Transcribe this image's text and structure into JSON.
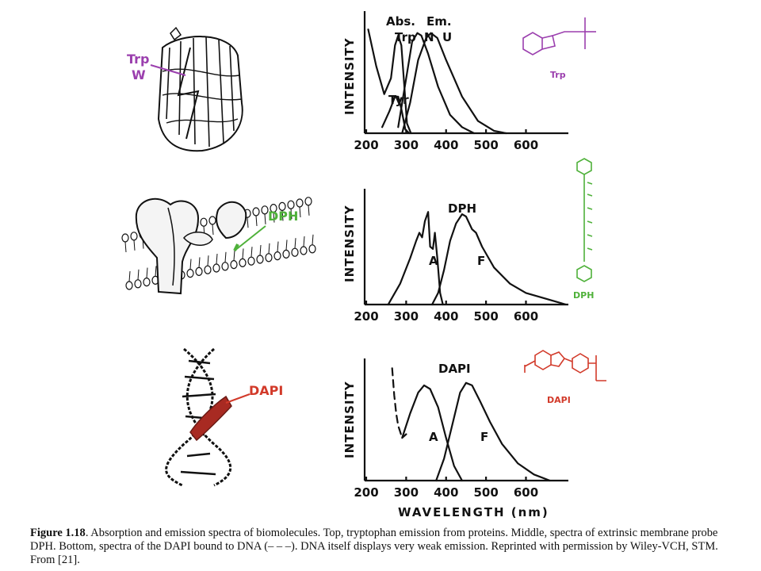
{
  "chart_data": [
    {
      "type": "line",
      "ylabel": "INTENSITY",
      "xlim": [
        200,
        700
      ],
      "xticks": [
        200,
        300,
        400,
        500,
        600
      ],
      "labels": [
        "Abs.",
        "Em.",
        "Trp",
        "N",
        "U",
        "Tyr"
      ],
      "series": [
        {
          "name": "Trp",
          "style": "solid",
          "points": [
            [
              205,
              0.85
            ],
            [
              225,
              0.55
            ],
            [
              245,
              0.32
            ],
            [
              262,
              0.45
            ],
            [
              272,
              0.72
            ],
            [
              280,
              0.8
            ],
            [
              288,
              0.72
            ],
            [
              295,
              0.4
            ],
            [
              302,
              0.08
            ],
            [
              312,
              0.0
            ]
          ]
        },
        {
          "name": "Tyr",
          "style": "solid",
          "points": [
            [
              240,
              0.05
            ],
            [
              258,
              0.18
            ],
            [
              272,
              0.3
            ],
            [
              280,
              0.3
            ],
            [
              288,
              0.2
            ],
            [
              298,
              0.03
            ],
            [
              308,
              0.0
            ]
          ]
        },
        {
          "name": "N",
          "style": "solid",
          "points": [
            [
              280,
              0.05
            ],
            [
              300,
              0.45
            ],
            [
              315,
              0.75
            ],
            [
              328,
              0.82
            ],
            [
              338,
              0.8
            ],
            [
              355,
              0.65
            ],
            [
              380,
              0.38
            ],
            [
              410,
              0.15
            ],
            [
              440,
              0.05
            ],
            [
              470,
              0.0
            ]
          ]
        },
        {
          "name": "U",
          "style": "solid",
          "points": [
            [
              290,
              0.0
            ],
            [
              310,
              0.25
            ],
            [
              330,
              0.6
            ],
            [
              350,
              0.78
            ],
            [
              362,
              0.82
            ],
            [
              378,
              0.78
            ],
            [
              400,
              0.6
            ],
            [
              440,
              0.3
            ],
            [
              480,
              0.1
            ],
            [
              520,
              0.02
            ],
            [
              550,
              0.0
            ]
          ]
        }
      ]
    },
    {
      "type": "line",
      "ylabel": "INTENSITY",
      "xlim": [
        200,
        700
      ],
      "xticks": [
        200,
        300,
        400,
        500,
        600
      ],
      "labels": [
        "DPH",
        "A",
        "F"
      ],
      "series": [
        {
          "name": "A",
          "style": "solid",
          "points": [
            [
              255,
              0.0
            ],
            [
              285,
              0.18
            ],
            [
              310,
              0.4
            ],
            [
              325,
              0.55
            ],
            [
              333,
              0.62
            ],
            [
              340,
              0.58
            ],
            [
              347,
              0.72
            ],
            [
              355,
              0.8
            ],
            [
              360,
              0.5
            ],
            [
              367,
              0.48
            ],
            [
              372,
              0.62
            ],
            [
              378,
              0.4
            ],
            [
              385,
              0.1
            ],
            [
              392,
              0.0
            ]
          ]
        },
        {
          "name": "F",
          "style": "solid",
          "points": [
            [
              365,
              0.0
            ],
            [
              380,
              0.1
            ],
            [
              395,
              0.3
            ],
            [
              410,
              0.55
            ],
            [
              425,
              0.7
            ],
            [
              440,
              0.78
            ],
            [
              450,
              0.76
            ],
            [
              465,
              0.65
            ],
            [
              475,
              0.62
            ],
            [
              490,
              0.5
            ],
            [
              520,
              0.32
            ],
            [
              560,
              0.18
            ],
            [
              600,
              0.1
            ],
            [
              650,
              0.05
            ],
            [
              700,
              0.0
            ]
          ]
        }
      ]
    },
    {
      "type": "line",
      "ylabel": "INTENSITY",
      "xlabel": "WAVELENGTH (nm)",
      "xlim": [
        200,
        700
      ],
      "xticks": [
        200,
        300,
        400,
        500,
        600
      ],
      "labels": [
        "DAPI",
        "A",
        "F"
      ],
      "series": [
        {
          "name": "DNA",
          "style": "dashed",
          "points": [
            [
              265,
              0.92
            ],
            [
              270,
              0.7
            ],
            [
              275,
              0.55
            ],
            [
              280,
              0.45
            ],
            [
              290,
              0.35
            ],
            [
              300,
              0.38
            ]
          ]
        },
        {
          "name": "A",
          "style": "solid",
          "points": [
            [
              290,
              0.35
            ],
            [
              310,
              0.55
            ],
            [
              330,
              0.72
            ],
            [
              345,
              0.78
            ],
            [
              360,
              0.75
            ],
            [
              380,
              0.6
            ],
            [
              400,
              0.35
            ],
            [
              420,
              0.12
            ],
            [
              440,
              0.0
            ]
          ]
        },
        {
          "name": "F",
          "style": "solid",
          "points": [
            [
              375,
              0.0
            ],
            [
              395,
              0.18
            ],
            [
              415,
              0.45
            ],
            [
              435,
              0.72
            ],
            [
              450,
              0.8
            ],
            [
              465,
              0.78
            ],
            [
              485,
              0.65
            ],
            [
              510,
              0.48
            ],
            [
              540,
              0.3
            ],
            [
              580,
              0.14
            ],
            [
              620,
              0.05
            ],
            [
              660,
              0.0
            ]
          ]
        }
      ]
    }
  ],
  "illustrations": {
    "protein_label_1": "Trp",
    "protein_label_2": "W",
    "membrane_label": "DPH",
    "dna_label": "DAPI"
  },
  "structures": {
    "trp_name": "Trp",
    "dph_name": "DPH",
    "dapi_name": "DAPI"
  },
  "colors": {
    "trp": "#9b3fae",
    "dph": "#4fb13a",
    "dapi": "#d23a2a"
  },
  "caption": {
    "figure_label": "Figure 1.18",
    "text": ". Absorption and emission spectra of biomolecules. Top, tryptophan emission from proteins. Middle, spectra of extrinsic membrane probe DPH. Bottom, spectra of the DAPI bound to DNA (– – –). DNA itself displays very weak emission. Reprinted with permission by Wiley-VCH, STM. From [21]."
  }
}
